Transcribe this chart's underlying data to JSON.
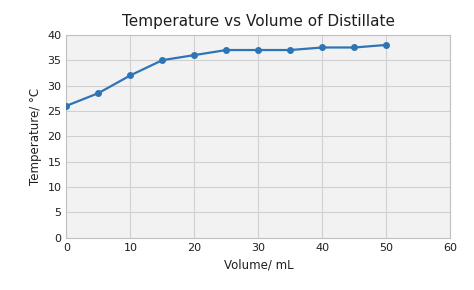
{
  "x": [
    0,
    5,
    10,
    15,
    20,
    25,
    30,
    35,
    40,
    45,
    50
  ],
  "y": [
    26,
    28.5,
    32,
    35,
    36,
    37,
    37,
    37,
    37.5,
    37.5,
    38
  ],
  "title": "Temperature vs Volume of Distillate",
  "xlabel": "Volume/ mL",
  "ylabel": "Temperature/ °C",
  "xlim": [
    0,
    60
  ],
  "ylim": [
    0,
    40
  ],
  "xticks": [
    0,
    10,
    20,
    30,
    40,
    50,
    60
  ],
  "yticks": [
    0,
    5,
    10,
    15,
    20,
    25,
    30,
    35,
    40
  ],
  "line_color": "#2E75B6",
  "marker_color": "#2E75B6",
  "marker": "o",
  "markersize": 4,
  "linewidth": 1.6,
  "grid_color": "#D0D0D0",
  "plot_bg_color": "#F2F2F2",
  "outer_bg_color": "#FFFFFF",
  "title_fontsize": 11,
  "label_fontsize": 8.5,
  "tick_fontsize": 8
}
